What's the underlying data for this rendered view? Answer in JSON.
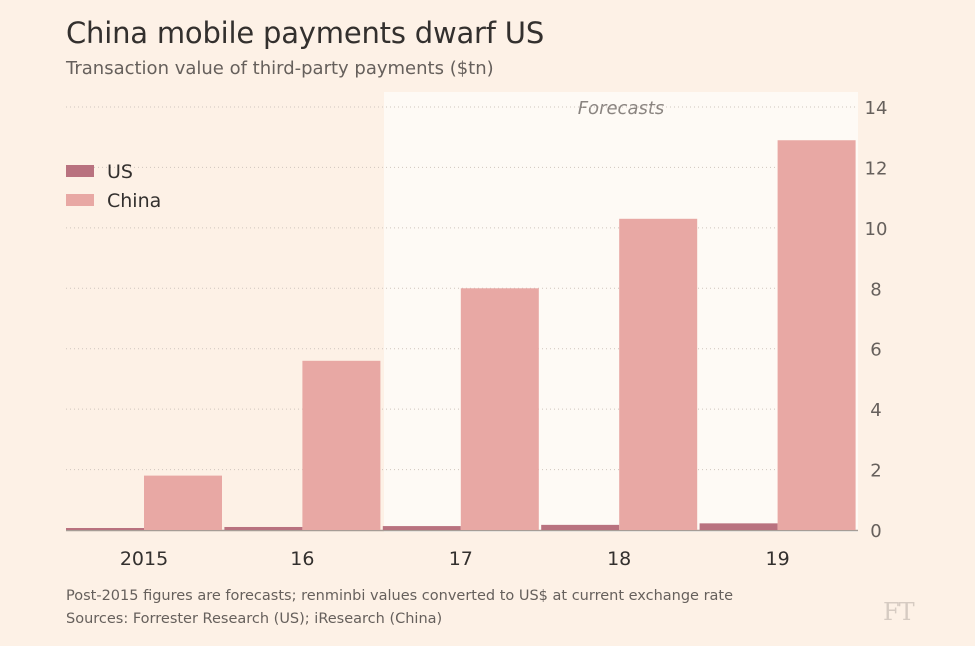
{
  "header": {
    "title": "China mobile payments dwarf US",
    "subtitle": "Transaction value of third-party payments ($tn)"
  },
  "footer": {
    "note": "Post-2015 figures are forecasts; renminbi values converted to US$ at current exchange rate",
    "sources": "Sources: Forrester Research (US); iResearch (China)"
  },
  "logo": "FT",
  "colors": {
    "background": "#fdf1e6",
    "forecast_band": "#fefaf5",
    "us": "#b9727f",
    "china": "#e8a8a4",
    "text": "#33302e",
    "muted": "#66605c"
  },
  "chart_data": {
    "type": "bar",
    "title": "China mobile payments dwarf US",
    "subtitle": "Transaction value of third-party payments ($tn)",
    "categories": [
      "2015",
      "16",
      "17",
      "18",
      "19"
    ],
    "series": [
      {
        "name": "US",
        "values": [
          0.06,
          0.1,
          0.13,
          0.17,
          0.22
        ]
      },
      {
        "name": "China",
        "values": [
          1.8,
          5.6,
          8.0,
          10.3,
          12.9
        ]
      }
    ],
    "ylim": [
      0,
      14
    ],
    "yticks": [
      0,
      2,
      4,
      6,
      8,
      10,
      12,
      14
    ],
    "y_axis_side": "right",
    "grid": true,
    "legend_position": "top-left",
    "annotation": "Forecasts",
    "forecast_start_category": "17"
  }
}
